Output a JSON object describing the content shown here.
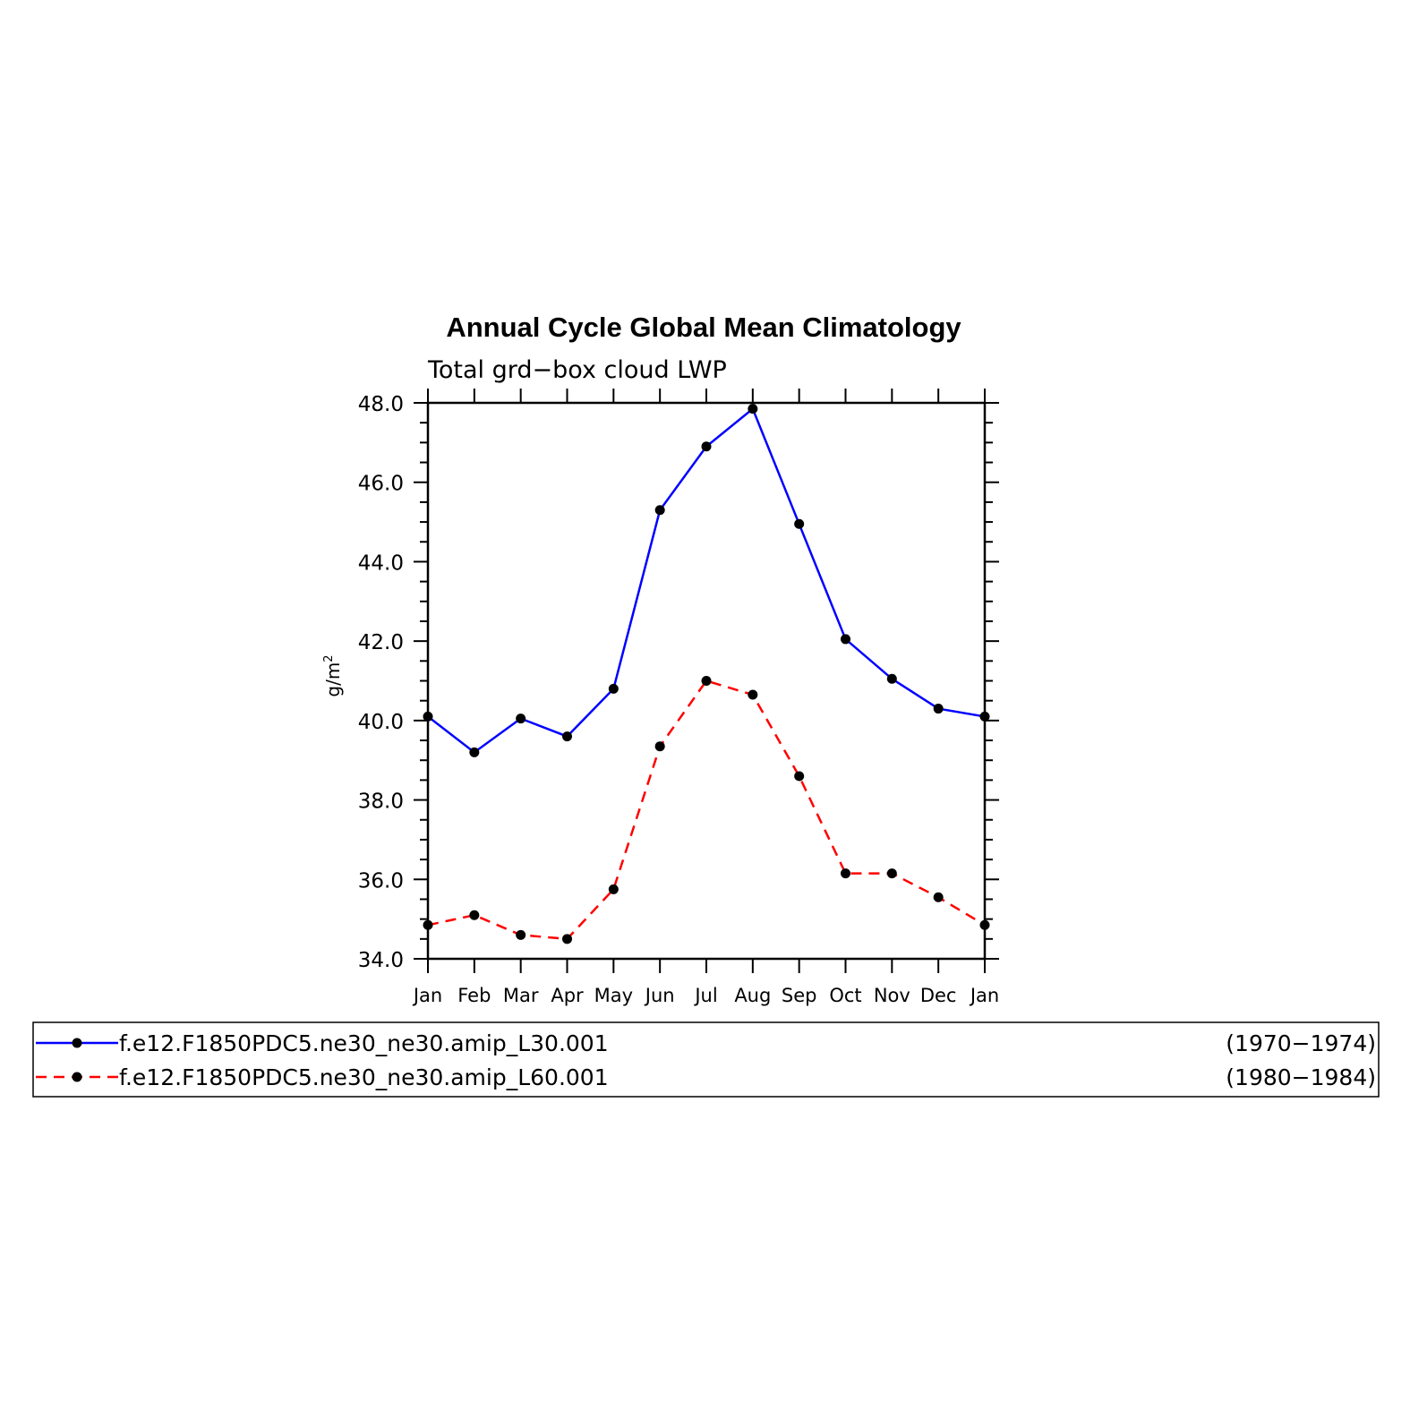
{
  "chart_data": {
    "type": "line",
    "title": "Annual Cycle Global Mean Climatology",
    "subtitle": "Total grd−box cloud LWP",
    "ylabel": "g/m",
    "ylabel_superscript": "2",
    "xlabel": "",
    "categories": [
      "Jan",
      "Feb",
      "Mar",
      "Apr",
      "May",
      "Jun",
      "Jul",
      "Aug",
      "Sep",
      "Oct",
      "Nov",
      "Dec",
      "Jan"
    ],
    "ylim": [
      34.0,
      48.0
    ],
    "yticks": [
      "34.0",
      "36.0",
      "38.0",
      "40.0",
      "42.0",
      "44.0",
      "46.0",
      "48.0"
    ],
    "grid": false,
    "legend_position": "bottom",
    "series": [
      {
        "name": "f.e12.F1850PDC5.ne30_ne30.amip_L30.001",
        "period": "(1970−1974)",
        "color": "#0000ff",
        "line_style": "solid",
        "marker": "filled-circle",
        "values": [
          40.1,
          39.2,
          40.05,
          39.6,
          40.8,
          45.3,
          46.9,
          47.85,
          44.95,
          42.05,
          41.05,
          40.3,
          40.1
        ]
      },
      {
        "name": "f.e12.F1850PDC5.ne30_ne30.amip_L60.001",
        "period": "(1980−1984)",
        "color": "#ff0000",
        "line_style": "dashed",
        "marker": "filled-circle",
        "values": [
          34.85,
          35.1,
          34.6,
          34.5,
          35.75,
          39.35,
          41.0,
          40.65,
          38.6,
          36.15,
          36.15,
          35.55,
          34.85
        ]
      }
    ]
  }
}
